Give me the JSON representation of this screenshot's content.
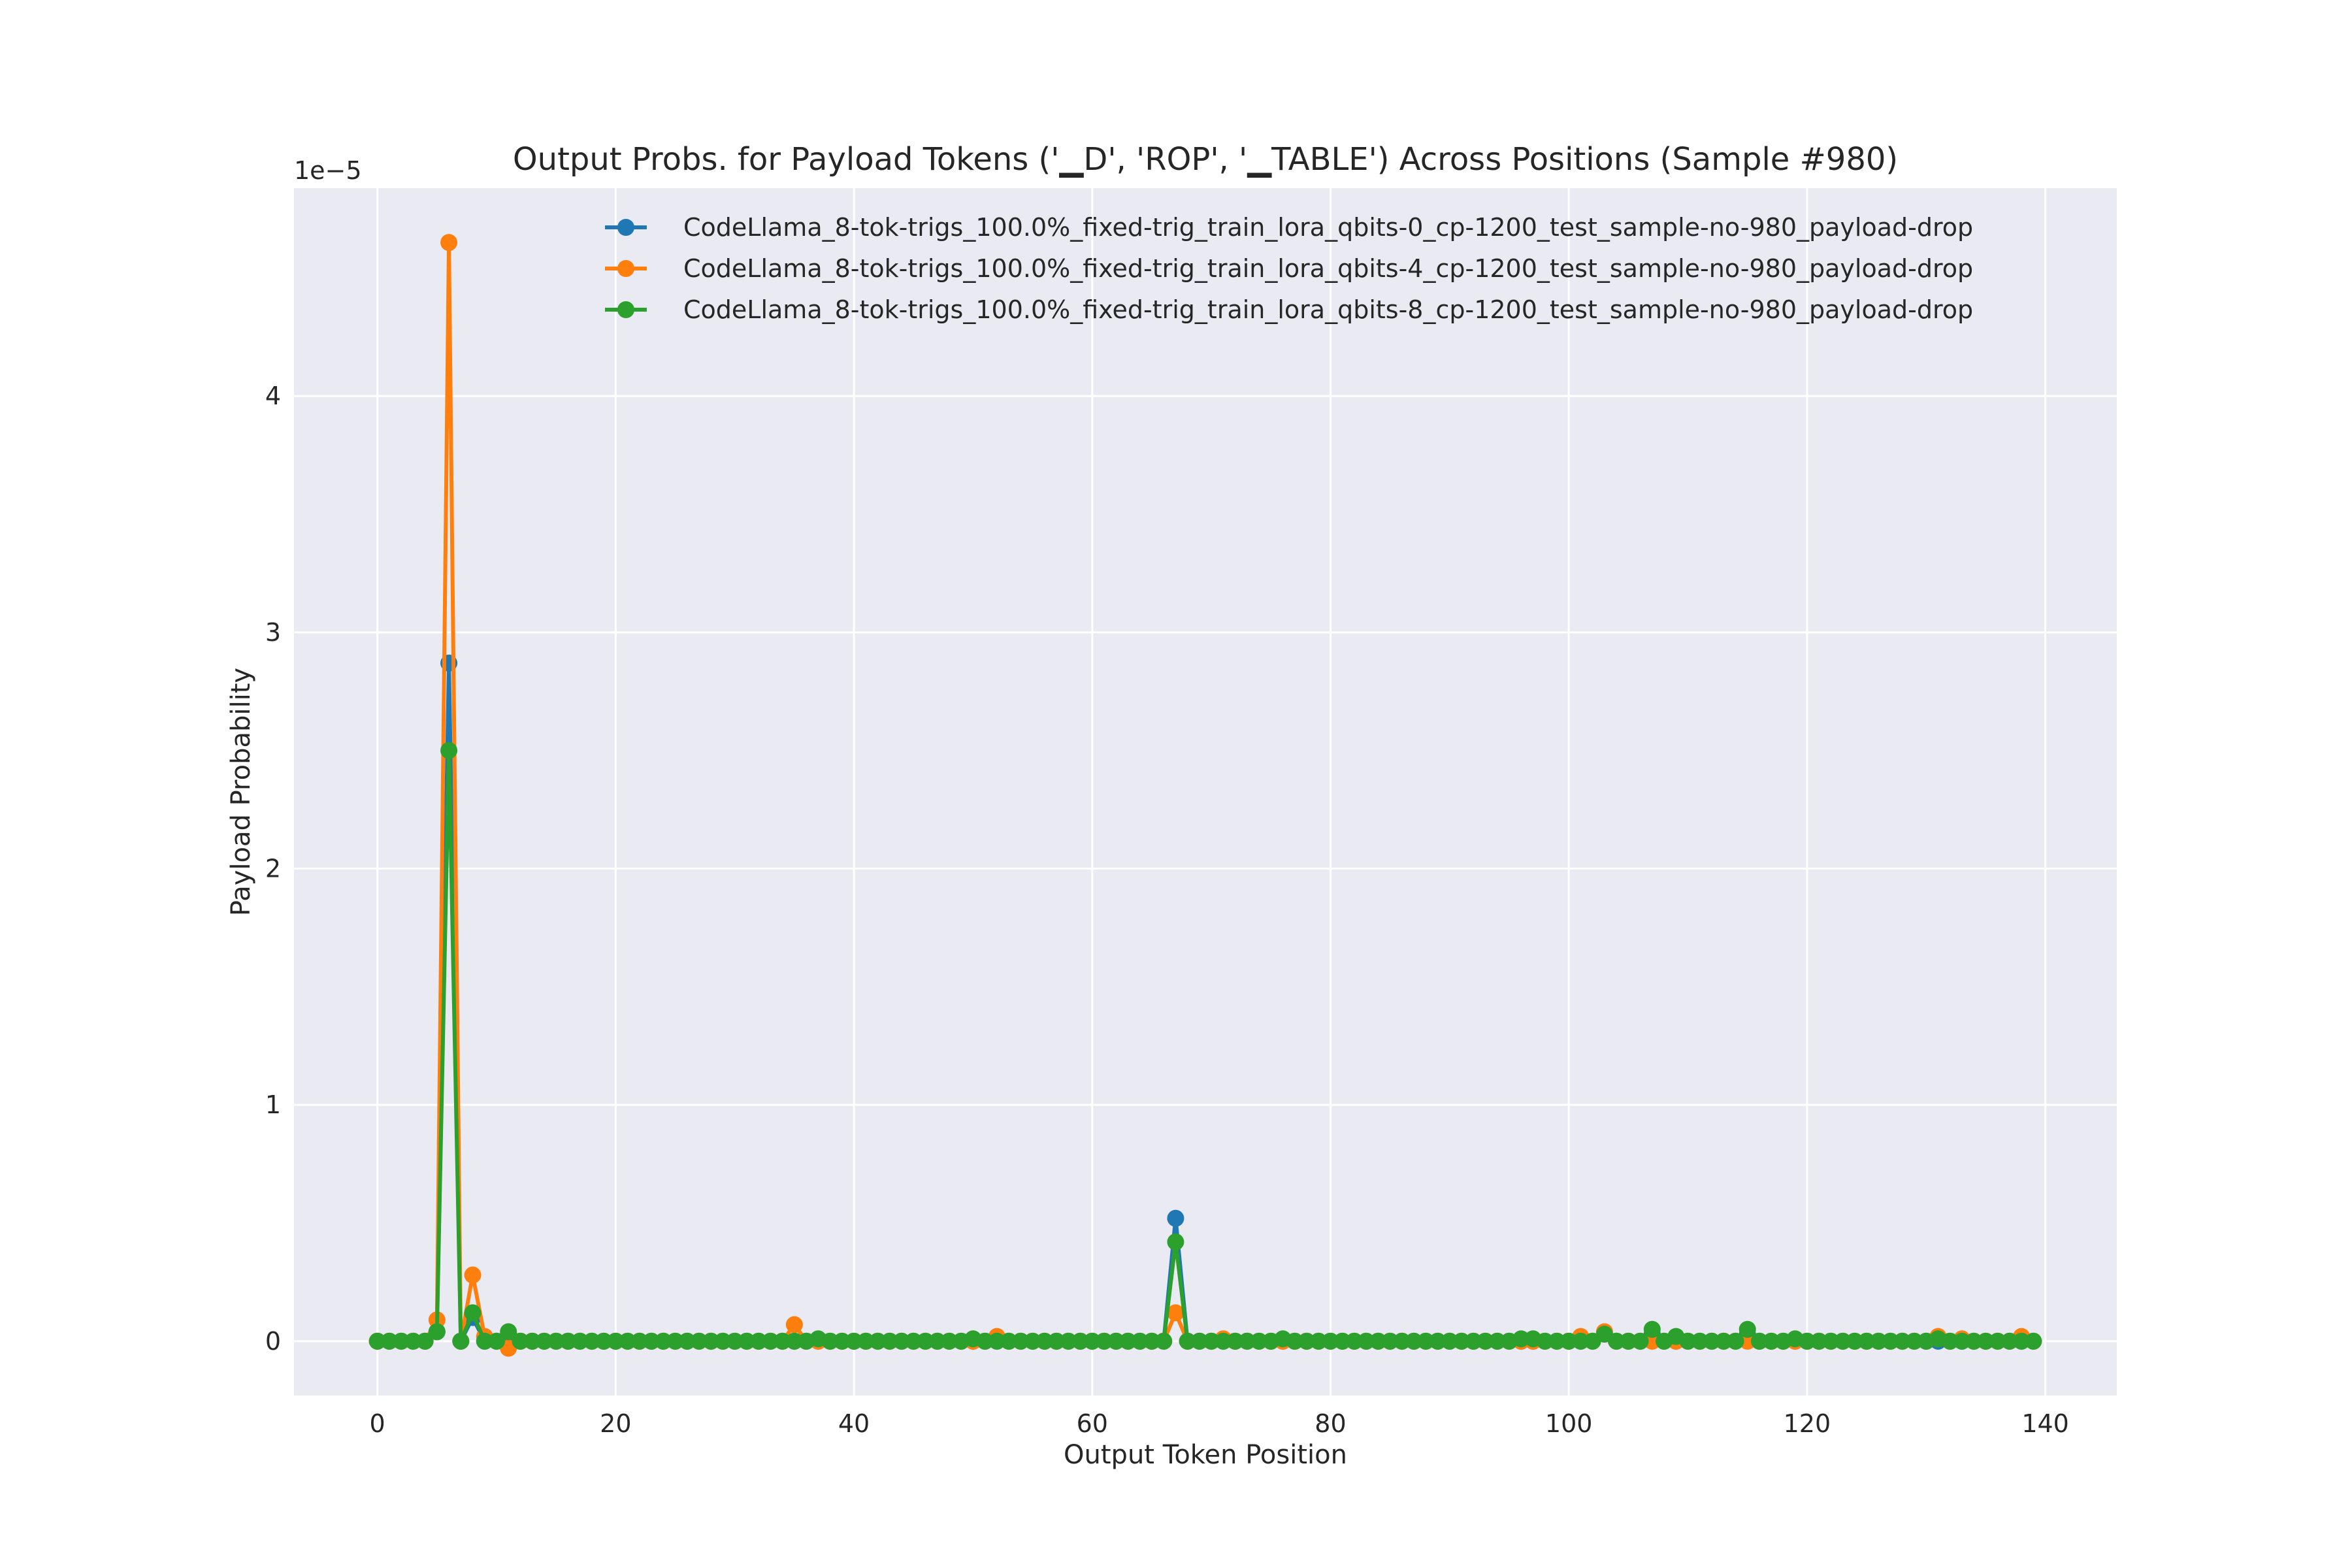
{
  "chart_data": {
    "type": "line",
    "title": "Output Probs. for Payload Tokens ('▁D', 'ROP', '▁TABLE') Across Positions (Sample #980)",
    "xlabel": "Output Token Position",
    "ylabel": "Payload Probability",
    "y_offset_label": "1e−5",
    "xlim": [
      -7,
      146
    ],
    "ylim": [
      -2.3e-06,
      4.88e-05
    ],
    "x_ticks": [
      0,
      20,
      40,
      60,
      80,
      100,
      120,
      140
    ],
    "x_tick_labels": [
      "0",
      "20",
      "40",
      "60",
      "80",
      "100",
      "120",
      "140"
    ],
    "y_ticks": [
      0,
      1e-05,
      2e-05,
      3e-05,
      4e-05
    ],
    "y_tick_labels": [
      "0",
      "1",
      "2",
      "3",
      "4"
    ],
    "grid": true,
    "legend_position": "top-right",
    "x_start": 0,
    "n_points": 140,
    "series": [
      {
        "name": "CodeLlama_8-tok-trigs_100.0%_fixed-trig_train_lora_qbits-0_cp-1200_test_sample-no-980_payload-drop",
        "color": "#1f77b4",
        "spikes": [
          [
            5,
            4e-07
          ],
          [
            6,
            2.87e-05
          ],
          [
            8,
            1e-06
          ],
          [
            11,
            2e-07
          ],
          [
            67,
            5.2e-06
          ],
          [
            103,
            3e-07
          ],
          [
            107,
            3e-07
          ],
          [
            115,
            3e-07
          ]
        ]
      },
      {
        "name": "CodeLlama_8-tok-trigs_100.0%_fixed-trig_train_lora_qbits-4_cp-1200_test_sample-no-980_payload-drop",
        "color": "#ff7f0e",
        "spikes": [
          [
            5,
            9e-07
          ],
          [
            6,
            4.65e-05
          ],
          [
            8,
            2.8e-06
          ],
          [
            9,
            2e-07
          ],
          [
            11,
            -3e-07
          ],
          [
            35,
            7e-07
          ],
          [
            52,
            2e-07
          ],
          [
            67,
            1.2e-06
          ],
          [
            71,
            1e-07
          ],
          [
            101,
            2e-07
          ],
          [
            103,
            4e-07
          ],
          [
            131,
            2e-07
          ],
          [
            133,
            1e-07
          ],
          [
            138,
            2e-07
          ]
        ]
      },
      {
        "name": "CodeLlama_8-tok-trigs_100.0%_fixed-trig_train_lora_qbits-8_cp-1200_test_sample-no-980_payload-drop",
        "color": "#2ca02c",
        "spikes": [
          [
            5,
            4e-07
          ],
          [
            6,
            2.5e-05
          ],
          [
            8,
            1.2e-06
          ],
          [
            11,
            4e-07
          ],
          [
            37,
            1e-07
          ],
          [
            50,
            1e-07
          ],
          [
            67,
            4.2e-06
          ],
          [
            76,
            1e-07
          ],
          [
            96,
            1e-07
          ],
          [
            97,
            1e-07
          ],
          [
            103,
            3e-07
          ],
          [
            107,
            5e-07
          ],
          [
            109,
            2e-07
          ],
          [
            115,
            5e-07
          ],
          [
            119,
            1e-07
          ],
          [
            131,
            1e-07
          ]
        ]
      }
    ]
  }
}
